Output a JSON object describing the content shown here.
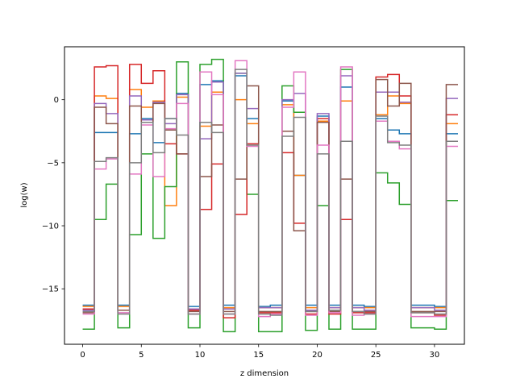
{
  "chart_data": {
    "type": "line",
    "step": "post",
    "xlabel": "z dimension",
    "ylabel": "log(w)",
    "xlim": [
      -1.55,
      32.55
    ],
    "ylim": [
      -19.4,
      4.2
    ],
    "xticks": [
      0,
      5,
      10,
      15,
      20,
      25,
      30
    ],
    "yticks": [
      -15,
      -10,
      -5,
      0
    ],
    "x_edges": [
      0,
      1,
      2,
      3,
      4,
      5,
      6,
      7,
      8,
      9,
      10,
      11,
      12,
      13,
      14,
      15,
      16,
      17,
      18,
      19,
      20,
      21,
      22,
      23,
      24,
      25,
      26,
      27,
      28,
      29,
      30,
      31
    ],
    "series": [
      {
        "color": "#1f77b4",
        "values": [
          -16.3,
          -2.6,
          -2.6,
          -16.3,
          -2.7,
          -1.5,
          -3.4,
          -1.5,
          0.5,
          -16.4,
          1.2,
          1.5,
          -16.3,
          1.9,
          -1.5,
          -16.4,
          -16.3,
          -0.1,
          -6.0,
          -16.3,
          -1.3,
          -16.3,
          1.0,
          -16.3,
          -16.4,
          -1.5,
          -2.4,
          -2.7,
          -16.3,
          -16.3,
          -16.4,
          -2.7
        ]
      },
      {
        "color": "#ff7f0e",
        "values": [
          -16.4,
          0.3,
          0.1,
          -16.4,
          0.8,
          -0.6,
          -0.1,
          -8.4,
          0.2,
          -16.6,
          -2.1,
          0.6,
          -16.5,
          0.0,
          -1.9,
          -16.5,
          -16.5,
          -0.4,
          -6.0,
          -16.5,
          -1.7,
          -16.5,
          -0.1,
          -16.5,
          -16.5,
          -1.2,
          0.3,
          -0.3,
          -16.5,
          -16.5,
          -16.5,
          -1.9
        ]
      },
      {
        "color": "#2ca02c",
        "values": [
          -18.2,
          -9.5,
          -6.7,
          -18.1,
          -10.7,
          -4.3,
          -11.0,
          -6.9,
          3.0,
          -18.1,
          2.8,
          3.2,
          -18.4,
          2.1,
          -7.5,
          -18.4,
          -18.4,
          1.1,
          -1.0,
          -18.3,
          -8.4,
          -18.2,
          2.4,
          -18.2,
          -18.2,
          -5.8,
          -6.6,
          -8.3,
          -18.1,
          -18.1,
          -18.2,
          -8.0
        ]
      },
      {
        "color": "#d62728",
        "values": [
          -16.6,
          2.6,
          2.7,
          -16.7,
          2.8,
          1.3,
          2.3,
          -3.5,
          -4.3,
          -16.7,
          -8.7,
          -5.1,
          -17.3,
          -9.1,
          -3.5,
          -16.9,
          -16.9,
          -4.2,
          -9.8,
          -17.0,
          -1.5,
          -17.0,
          -9.5,
          -16.9,
          -16.9,
          1.8,
          2.0,
          0.3,
          -16.9,
          -16.9,
          -17.1,
          -1.2
        ]
      },
      {
        "color": "#9467bd",
        "values": [
          -16.7,
          -0.3,
          -1.1,
          -16.7,
          0.3,
          -1.6,
          -0.2,
          -1.9,
          0.4,
          -16.6,
          -3.1,
          1.4,
          -16.6,
          2.1,
          -0.7,
          -16.5,
          -16.5,
          0.0,
          0.5,
          -16.7,
          -1.1,
          -16.5,
          1.9,
          -16.5,
          -16.7,
          0.6,
          0.6,
          -0.2,
          -16.5,
          -16.5,
          -16.7,
          0.1
        ]
      },
      {
        "color": "#8c564b",
        "values": [
          -16.9,
          -0.6,
          -1.9,
          -16.7,
          -0.5,
          -1.8,
          -0.3,
          -2.4,
          -4.3,
          -16.8,
          -6.1,
          -2.0,
          -16.8,
          -6.3,
          1.1,
          -16.8,
          -16.8,
          -2.5,
          -10.4,
          -16.8,
          -1.8,
          -16.8,
          -6.3,
          -16.8,
          -16.8,
          1.6,
          -0.5,
          1.3,
          -16.8,
          -16.8,
          -16.8,
          1.2
        ]
      },
      {
        "color": "#e377c2",
        "values": [
          -17.0,
          -5.5,
          -4.7,
          -16.9,
          -5.9,
          -2.0,
          -6.1,
          -2.3,
          -0.3,
          -17.0,
          2.2,
          0.4,
          -17.0,
          3.1,
          -3.7,
          -17.2,
          -17.0,
          -0.6,
          2.2,
          -17.1,
          -3.6,
          -16.9,
          2.6,
          -17.1,
          -17.0,
          -1.7,
          -3.3,
          -3.9,
          -17.2,
          -17.2,
          -17.2,
          -3.7
        ]
      },
      {
        "color": "#7f7f7f",
        "values": [
          -16.8,
          -4.9,
          -4.6,
          -17.0,
          -5.0,
          -1.8,
          -4.2,
          -1.5,
          -2.8,
          -17.0,
          -1.8,
          -2.6,
          -17.0,
          2.4,
          -3.6,
          -17.0,
          -17.1,
          -2.9,
          -1.4,
          -16.8,
          -4.3,
          -16.7,
          -3.3,
          -16.8,
          -17.0,
          -1.3,
          -3.4,
          -3.6,
          -16.9,
          -16.9,
          -17.0,
          -3.3
        ]
      }
    ]
  }
}
